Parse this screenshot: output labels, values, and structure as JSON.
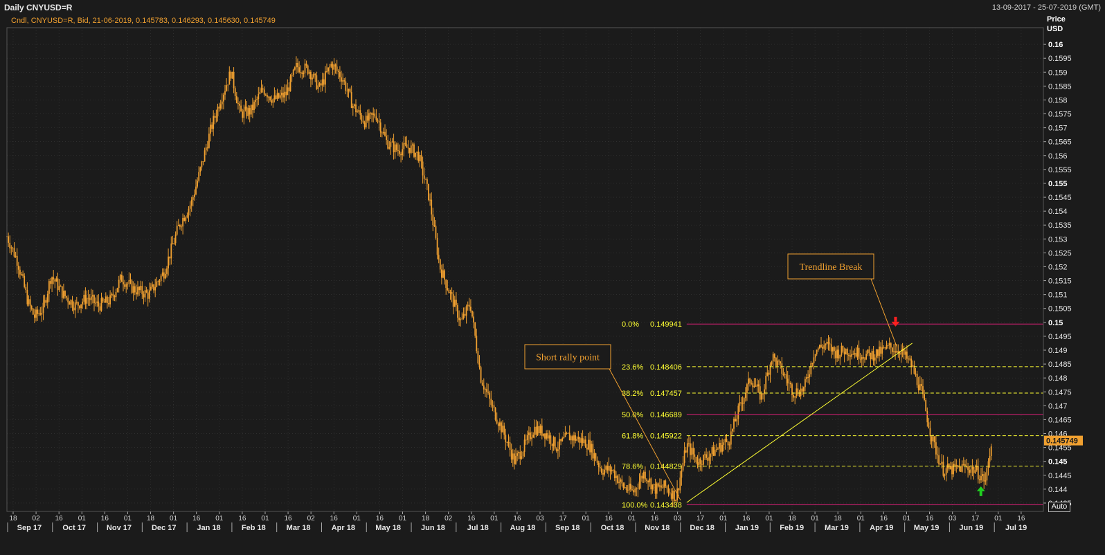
{
  "window": {
    "title": "Daily CNYUSD=R",
    "date_range": "13-09-2017 - 25-07-2019 (GMT)",
    "info_line": "Cndl, CNYUSD=R, Bid, 21-06-2019, 0.145783, 0.146293, 0.145630, 0.145749",
    "price_label_1": "Price",
    "price_label_2": "USD",
    "auto_button": "Auto"
  },
  "colors": {
    "background": "#1b1b1b",
    "grid": "#3a3a3a",
    "candle": "#f0a030",
    "fib_dashed": "#ffff33",
    "fib_solid": "#e0207a",
    "trendline": "#ffff33",
    "annotation": "#f0a030",
    "down_arrow": "#ff2020",
    "up_arrow": "#20d020",
    "last_price_bg": "#f0a030"
  },
  "chart_data": {
    "type": "candlestick",
    "instrument": "CNYUSD=R",
    "ylim": [
      0.1432,
      0.1606
    ],
    "y_ticks": [
      "0.16",
      "0.1595",
      "0.159",
      "0.1585",
      "0.158",
      "0.1575",
      "0.157",
      "0.1565",
      "0.156",
      "0.1555",
      "0.155",
      "0.1545",
      "0.154",
      "0.1535",
      "0.153",
      "0.1525",
      "0.152",
      "0.1515",
      "0.151",
      "0.1505",
      "0.15",
      "0.1495",
      "0.149",
      "0.1485",
      "0.148",
      "0.1475",
      "0.147",
      "0.1465",
      "0.146",
      "0.1455",
      "0.145",
      "0.1445",
      "0.144",
      "0.1435"
    ],
    "y_major_ticks": [
      "0.16",
      "0.155",
      "0.15",
      "0.145"
    ],
    "x_day_ticks": [
      "18",
      "02",
      "16",
      "01",
      "16",
      "01",
      "18",
      "01",
      "16",
      "01",
      "16",
      "01",
      "16",
      "02",
      "16",
      "01",
      "16",
      "01",
      "18",
      "02",
      "16",
      "01",
      "16",
      "03",
      "17",
      "01",
      "16",
      "01",
      "16",
      "03",
      "17",
      "01",
      "16",
      "01",
      "18",
      "01",
      "18",
      "01",
      "16",
      "01",
      "16",
      "03",
      "17",
      "01",
      "16"
    ],
    "x_months": [
      "Sep 17",
      "Oct 17",
      "Nov 17",
      "Dec 17",
      "Jan 18",
      "Feb 18",
      "Mar 18",
      "Apr 18",
      "May 18",
      "Jun 18",
      "Jul 18",
      "Aug 18",
      "Sep 18",
      "Oct 18",
      "Nov 18",
      "Dec 18",
      "Jan 19",
      "Feb 19",
      "Mar 19",
      "Apr 19",
      "May 19",
      "Jun 19",
      "Jul 19"
    ],
    "close_path": [
      {
        "date": "2017-09-13",
        "close": 0.1531
      },
      {
        "date": "2017-09-20",
        "close": 0.1522
      },
      {
        "date": "2017-09-27",
        "close": 0.1507
      },
      {
        "date": "2017-10-01",
        "close": 0.1502
      },
      {
        "date": "2017-10-07",
        "close": 0.1505
      },
      {
        "date": "2017-10-12",
        "close": 0.1517
      },
      {
        "date": "2017-10-20",
        "close": 0.151
      },
      {
        "date": "2017-10-28",
        "close": 0.1506
      },
      {
        "date": "2017-11-05",
        "close": 0.1509
      },
      {
        "date": "2017-11-12",
        "close": 0.1506
      },
      {
        "date": "2017-11-20",
        "close": 0.1508
      },
      {
        "date": "2017-11-27",
        "close": 0.1516
      },
      {
        "date": "2017-12-05",
        "close": 0.1512
      },
      {
        "date": "2017-12-15",
        "close": 0.151
      },
      {
        "date": "2017-12-25",
        "close": 0.1518
      },
      {
        "date": "2018-01-04",
        "close": 0.1535
      },
      {
        "date": "2018-01-12",
        "close": 0.1543
      },
      {
        "date": "2018-01-18",
        "close": 0.1555
      },
      {
        "date": "2018-01-25",
        "close": 0.157
      },
      {
        "date": "2018-01-31",
        "close": 0.158
      },
      {
        "date": "2018-02-07",
        "close": 0.159
      },
      {
        "date": "2018-02-13",
        "close": 0.1575
      },
      {
        "date": "2018-02-20",
        "close": 0.1576
      },
      {
        "date": "2018-02-28",
        "close": 0.1584
      },
      {
        "date": "2018-03-07",
        "close": 0.158
      },
      {
        "date": "2018-03-15",
        "close": 0.1582
      },
      {
        "date": "2018-03-22",
        "close": 0.1592
      },
      {
        "date": "2018-03-30",
        "close": 0.1591
      },
      {
        "date": "2018-04-06",
        "close": 0.1584
      },
      {
        "date": "2018-04-14",
        "close": 0.1593
      },
      {
        "date": "2018-04-21",
        "close": 0.1588
      },
      {
        "date": "2018-04-28",
        "close": 0.1578
      },
      {
        "date": "2018-05-06",
        "close": 0.1572
      },
      {
        "date": "2018-05-13",
        "close": 0.1575
      },
      {
        "date": "2018-05-20",
        "close": 0.1565
      },
      {
        "date": "2018-05-27",
        "close": 0.1562
      },
      {
        "date": "2018-06-04",
        "close": 0.1563
      },
      {
        "date": "2018-06-10",
        "close": 0.156
      },
      {
        "date": "2018-06-17",
        "close": 0.1545
      },
      {
        "date": "2018-06-24",
        "close": 0.152
      },
      {
        "date": "2018-07-01",
        "close": 0.151
      },
      {
        "date": "2018-07-08",
        "close": 0.15
      },
      {
        "date": "2018-07-14",
        "close": 0.1507
      },
      {
        "date": "2018-07-21",
        "close": 0.148
      },
      {
        "date": "2018-07-28",
        "close": 0.147
      },
      {
        "date": "2018-08-05",
        "close": 0.146
      },
      {
        "date": "2018-08-12",
        "close": 0.145
      },
      {
        "date": "2018-08-18",
        "close": 0.1455
      },
      {
        "date": "2018-08-25",
        "close": 0.1462
      },
      {
        "date": "2018-09-02",
        "close": 0.146
      },
      {
        "date": "2018-09-09",
        "close": 0.1455
      },
      {
        "date": "2018-09-16",
        "close": 0.1459
      },
      {
        "date": "2018-09-23",
        "close": 0.1458
      },
      {
        "date": "2018-09-30",
        "close": 0.1456
      },
      {
        "date": "2018-10-08",
        "close": 0.1447
      },
      {
        "date": "2018-10-15",
        "close": 0.1447
      },
      {
        "date": "2018-10-22",
        "close": 0.1441
      },
      {
        "date": "2018-10-29",
        "close": 0.1439
      },
      {
        "date": "2018-11-05",
        "close": 0.1446
      },
      {
        "date": "2018-11-12",
        "close": 0.144
      },
      {
        "date": "2018-11-19",
        "close": 0.1441
      },
      {
        "date": "2018-11-26",
        "close": 0.1437
      },
      {
        "date": "2018-12-03",
        "close": 0.1456
      },
      {
        "date": "2018-12-10",
        "close": 0.145
      },
      {
        "date": "2018-12-17",
        "close": 0.1452
      },
      {
        "date": "2018-12-24",
        "close": 0.1455
      },
      {
        "date": "2018-12-31",
        "close": 0.1458
      },
      {
        "date": "2019-01-07",
        "close": 0.147
      },
      {
        "date": "2019-01-14",
        "close": 0.148
      },
      {
        "date": "2019-01-21",
        "close": 0.1473
      },
      {
        "date": "2019-01-28",
        "close": 0.1488
      },
      {
        "date": "2019-02-04",
        "close": 0.1482
      },
      {
        "date": "2019-02-11",
        "close": 0.1475
      },
      {
        "date": "2019-02-18",
        "close": 0.1476
      },
      {
        "date": "2019-02-25",
        "close": 0.149
      },
      {
        "date": "2019-03-04",
        "close": 0.1492
      },
      {
        "date": "2019-03-11",
        "close": 0.1489
      },
      {
        "date": "2019-03-18",
        "close": 0.149
      },
      {
        "date": "2019-03-25",
        "close": 0.1489
      },
      {
        "date": "2019-04-01",
        "close": 0.1488
      },
      {
        "date": "2019-04-08",
        "close": 0.1489
      },
      {
        "date": "2019-04-15",
        "close": 0.1491
      },
      {
        "date": "2019-04-22",
        "close": 0.149
      },
      {
        "date": "2019-04-29",
        "close": 0.1485
      },
      {
        "date": "2019-05-06",
        "close": 0.1475
      },
      {
        "date": "2019-05-13",
        "close": 0.1458
      },
      {
        "date": "2019-05-20",
        "close": 0.1447
      },
      {
        "date": "2019-05-27",
        "close": 0.1447
      },
      {
        "date": "2019-06-03",
        "close": 0.1448
      },
      {
        "date": "2019-06-10",
        "close": 0.1447
      },
      {
        "date": "2019-06-17",
        "close": 0.1443
      },
      {
        "date": "2019-06-21",
        "close": 0.1457
      }
    ],
    "last_candle": {
      "date": "21-06-2019",
      "open": 0.145783,
      "high": 0.146293,
      "low": 0.14563,
      "close": 0.145749
    },
    "last_price_label": "0.145749",
    "fibonacci": {
      "levels": [
        {
          "pct": "0.0%",
          "value": "0.149941",
          "style": "solid"
        },
        {
          "pct": "23.6%",
          "value": "0.148406",
          "style": "dashed"
        },
        {
          "pct": "38.2%",
          "value": "0.147457",
          "style": "dashed"
        },
        {
          "pct": "50.0%",
          "value": "0.146689",
          "style": "solid"
        },
        {
          "pct": "61.8%",
          "value": "0.145922",
          "style": "dashed"
        },
        {
          "pct": "78.6%",
          "value": "0.144829",
          "style": "dashed"
        },
        {
          "pct": "100.0%",
          "value": "0.143438",
          "style": "solid"
        }
      ],
      "start_date": "2018-12-03"
    },
    "trendline": {
      "from": {
        "date": "2018-12-03",
        "value": 0.14352
      },
      "to": {
        "date": "2019-04-30",
        "value": 0.14925
      }
    },
    "annotations": [
      {
        "text": "Short rally point",
        "target": {
          "date": "2018-11-29",
          "value": 0.1436
        }
      },
      {
        "text": "Trendline Break",
        "target": {
          "date": "2019-04-20",
          "value": 0.1491
        }
      }
    ],
    "markers": [
      {
        "type": "down-arrow",
        "date": "2019-04-19",
        "value": 0.14985
      },
      {
        "type": "up-arrow",
        "date": "2019-06-14",
        "value": 0.1441
      }
    ],
    "grid": true
  }
}
